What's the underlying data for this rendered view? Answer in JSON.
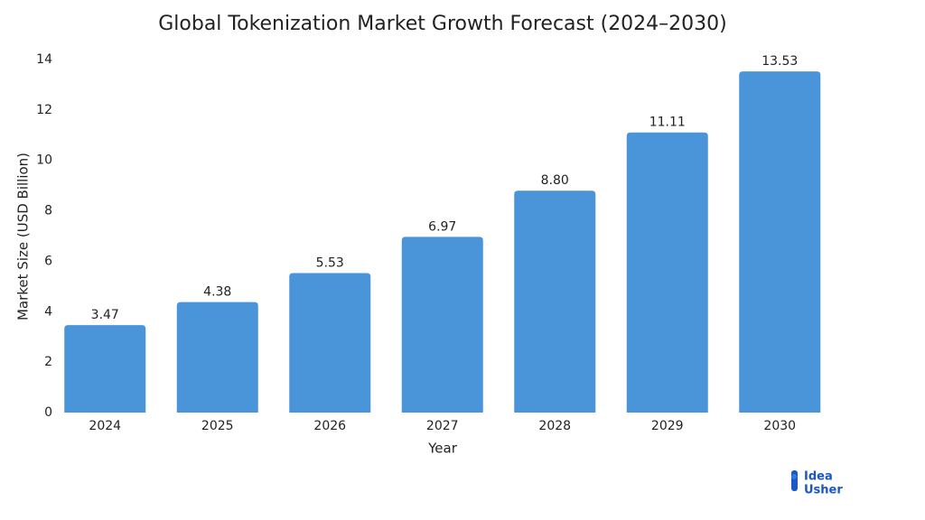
{
  "chart_data": {
    "type": "bar",
    "title": "Global Tokenization Market Growth Forecast (2024–2030)",
    "x_label": "Year",
    "y_label": "Market Size (USD Billion)",
    "categories": [
      "2024",
      "2025",
      "2026",
      "2027",
      "2028",
      "2029",
      "2030"
    ],
    "values": [
      3.47,
      4.38,
      5.53,
      6.97,
      8.8,
      11.11,
      13.53
    ],
    "value_labels": [
      "3.47",
      "4.38",
      "5.53",
      "6.97",
      "8.80",
      "11.11",
      "13.53"
    ],
    "color": "#4a94d9",
    "ylim": [
      0,
      14
    ],
    "yticks": [
      0,
      2,
      4,
      6,
      8,
      10,
      12,
      14
    ],
    "grid": false
  },
  "logo": {
    "line1": "Idea",
    "line2": "Usher"
  }
}
